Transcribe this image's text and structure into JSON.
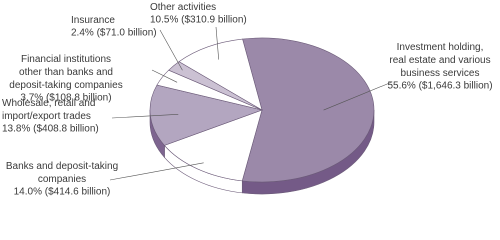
{
  "chart_data": {
    "type": "pie",
    "categories": [
      "Investment holding,\nreal estate and various\nbusiness services",
      "Banks and deposit-taking\ncompanies",
      "Wholesale, retail and\nimport/export trades",
      "Financial institutions\nother than banks and\ndeposit-taking companies",
      "Insurance",
      "Other activities"
    ],
    "values": [
      55.6,
      14.0,
      13.8,
      3.7,
      2.4,
      10.5
    ],
    "value_labels": [
      "55.6% ($1,646.3 billion)",
      "14.0% ($414.6 billion)",
      "13.8% ($408.8 billion)",
      "3.7% ($108.8 billion)",
      "2.4% ($71.0 billion)",
      "10.5% ($310.9 billion)"
    ],
    "colors": [
      "#9b89a9",
      "#ffffff",
      "#b3a6c0",
      "#ffffff",
      "#cbc1d3",
      "#ffffff"
    ]
  }
}
